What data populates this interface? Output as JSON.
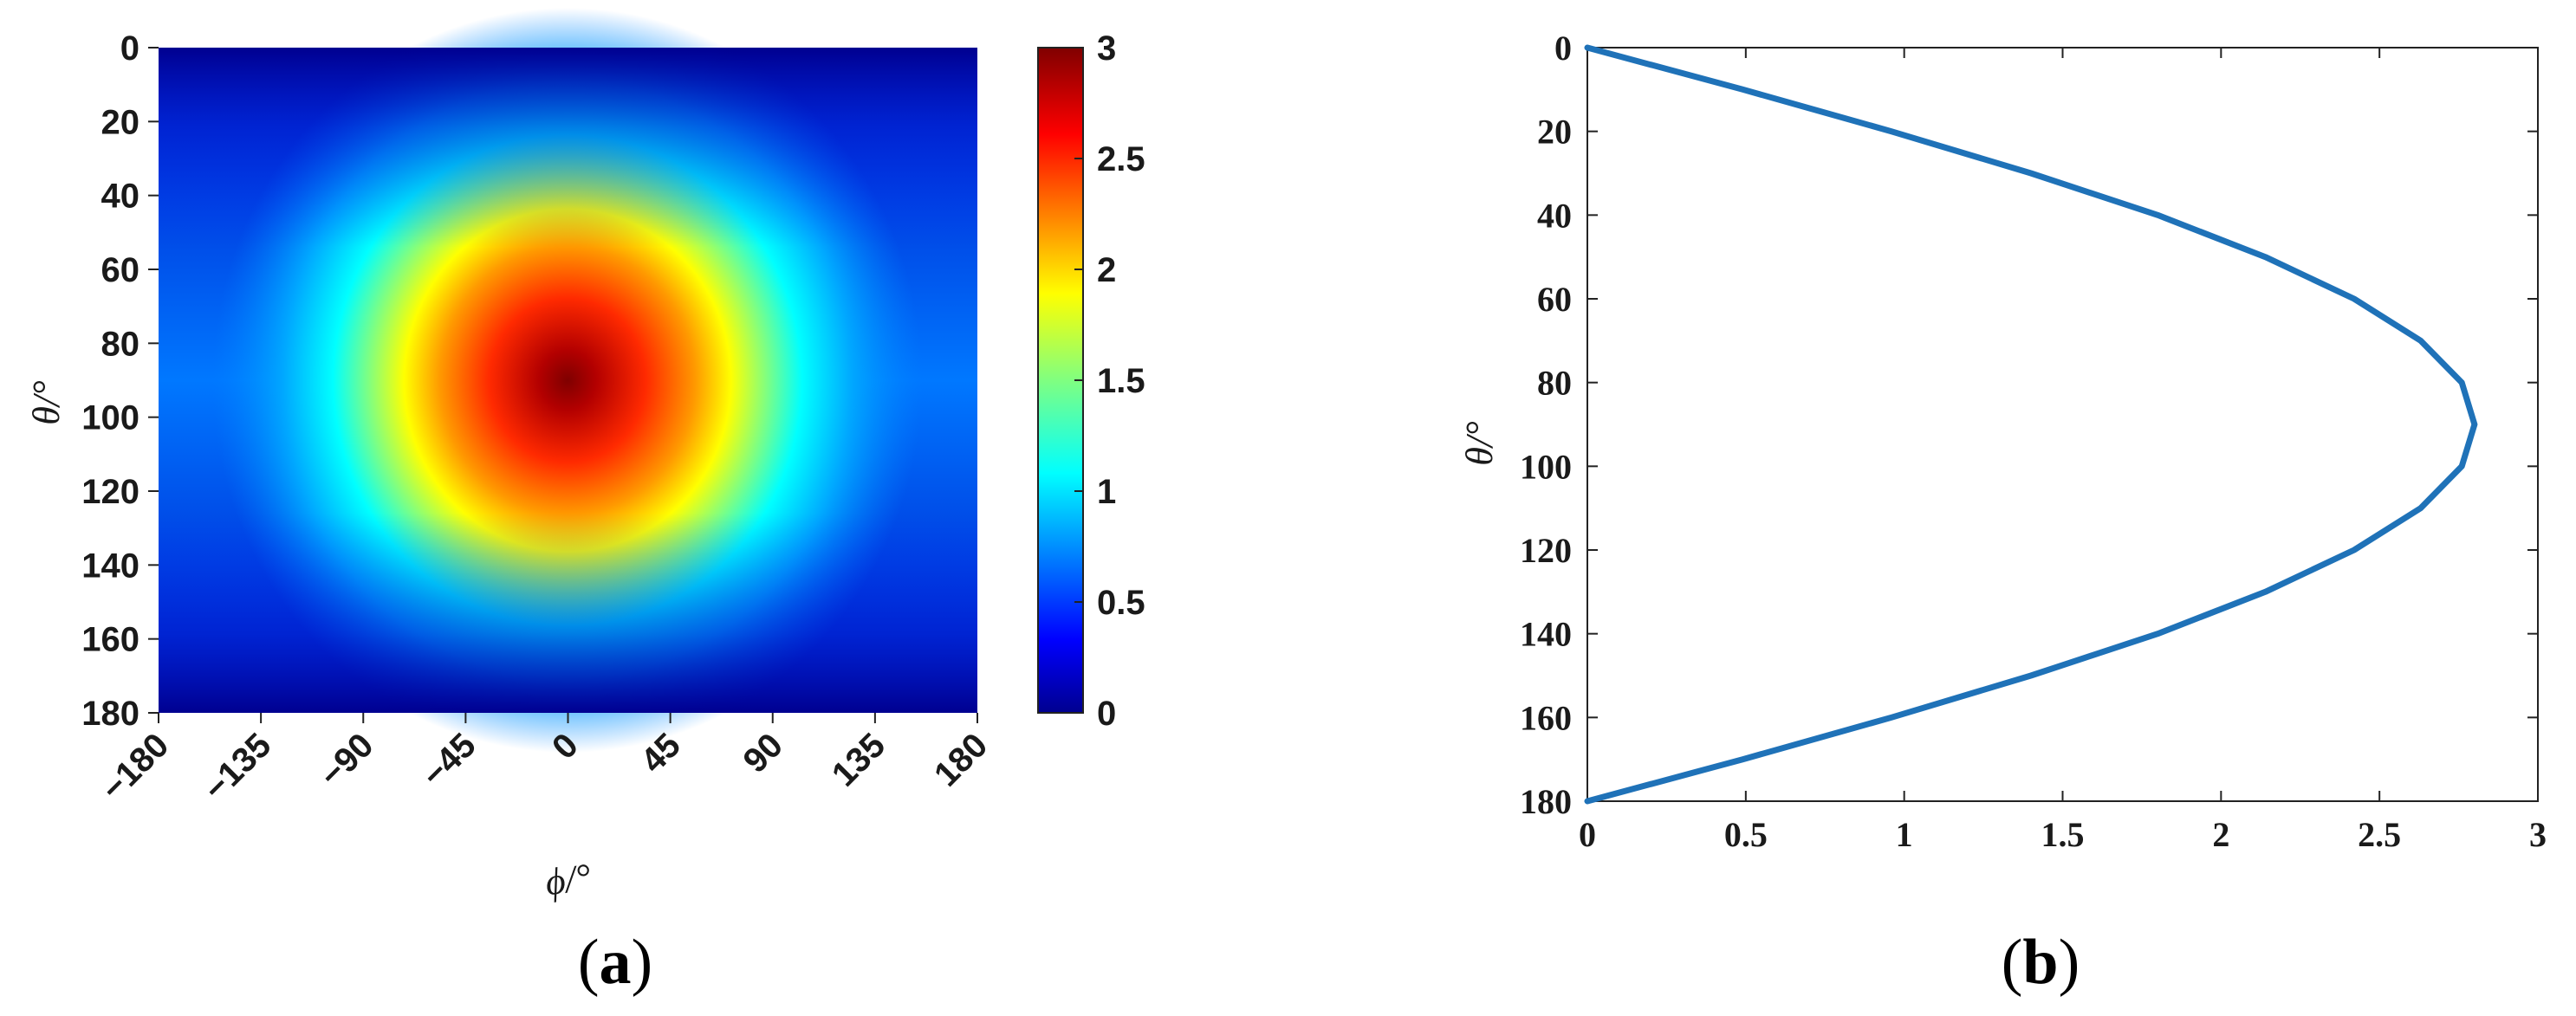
{
  "chart_data": [
    {
      "panel": "(a)",
      "panel_letter": "a",
      "type": "heatmap",
      "x": {
        "label": "ϕ/°",
        "ticks": [
          -180,
          -135,
          -90,
          -45,
          0,
          45,
          90,
          135,
          180
        ],
        "tick_labels": [
          "−180",
          "−135",
          "−90",
          "−45",
          "0",
          "45",
          "90",
          "135",
          "180"
        ],
        "range": [
          -180,
          180
        ]
      },
      "y": {
        "label": "θ/°",
        "ticks": [
          0,
          20,
          40,
          60,
          80,
          100,
          120,
          140,
          160,
          180
        ],
        "tick_labels": [
          "0",
          "20",
          "40",
          "60",
          "80",
          "100",
          "120",
          "140",
          "160",
          "180"
        ],
        "range": [
          0,
          180
        ],
        "reversed": true
      },
      "colorbar": {
        "range": [
          0,
          3
        ],
        "ticks": [
          0,
          0.5,
          1,
          1.5,
          2,
          2.5,
          3
        ],
        "tick_labels": [
          "0",
          "0.5",
          "1",
          "1.5",
          "2",
          "2.5",
          "3"
        ],
        "colormap": "jet"
      },
      "peak": {
        "phi": 0,
        "theta": 90,
        "value": 2.8
      }
    },
    {
      "panel": "(b)",
      "panel_letter": "b",
      "type": "line",
      "x": {
        "ticks": [
          0,
          0.5,
          1,
          1.5,
          2,
          2.5,
          3
        ],
        "tick_labels": [
          "0",
          "0.5",
          "1",
          "1.5",
          "2",
          "2.5",
          "3"
        ],
        "range": [
          0,
          3
        ]
      },
      "y": {
        "label": "θ/°",
        "ticks": [
          0,
          20,
          40,
          60,
          80,
          100,
          120,
          140,
          160,
          180
        ],
        "tick_labels": [
          "0",
          "20",
          "40",
          "60",
          "80",
          "100",
          "120",
          "140",
          "160",
          "180"
        ],
        "range": [
          0,
          180
        ],
        "reversed": true
      },
      "series": [
        {
          "color": "#1f72b8",
          "points": [
            [
              0,
              0
            ],
            [
              0.49,
              10
            ],
            [
              0.96,
              20
            ],
            [
              1.4,
              30
            ],
            [
              1.8,
              40
            ],
            [
              2.14,
              50
            ],
            [
              2.42,
              60
            ],
            [
              2.63,
              70
            ],
            [
              2.76,
              80
            ],
            [
              2.8,
              90
            ],
            [
              2.76,
              100
            ],
            [
              2.63,
              110
            ],
            [
              2.42,
              120
            ],
            [
              2.14,
              130
            ],
            [
              1.8,
              140
            ],
            [
              1.4,
              150
            ],
            [
              0.96,
              160
            ],
            [
              0.49,
              170
            ],
            [
              0,
              180
            ]
          ]
        }
      ]
    }
  ]
}
